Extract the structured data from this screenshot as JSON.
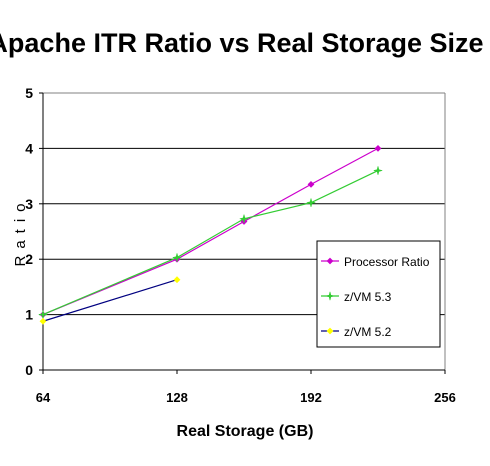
{
  "chart_data": {
    "type": "line",
    "title": "Apache ITR Ratio vs Real Storage Size",
    "xlabel": "Real Storage (GB)",
    "ylabel": "Ratio",
    "xlim": [
      64,
      256
    ],
    "ylim": [
      0,
      5
    ],
    "x_ticks": [
      64,
      128,
      192,
      256
    ],
    "y_ticks": [
      0,
      1,
      2,
      3,
      4,
      5
    ],
    "grid": "horizontal",
    "legend_position": "inside-right",
    "series": [
      {
        "name": "Processor Ratio",
        "color": "#cc00cc",
        "marker": "diamond",
        "points": [
          [
            64,
            1.0
          ],
          [
            128,
            2.0
          ],
          [
            160,
            2.68
          ],
          [
            192,
            3.35
          ],
          [
            224,
            4.0
          ]
        ]
      },
      {
        "name": "z/VM 5.3",
        "color": "#33cc33",
        "marker": "star",
        "points": [
          [
            64,
            1.0
          ],
          [
            128,
            2.03
          ],
          [
            160,
            2.73
          ],
          [
            192,
            3.02
          ],
          [
            224,
            3.6
          ]
        ]
      },
      {
        "name": "z/VM 5.2",
        "color": "#ffff00",
        "line_color": "#000080",
        "marker": "diamond",
        "points": [
          [
            64,
            0.88
          ],
          [
            128,
            1.63
          ]
        ]
      }
    ]
  }
}
